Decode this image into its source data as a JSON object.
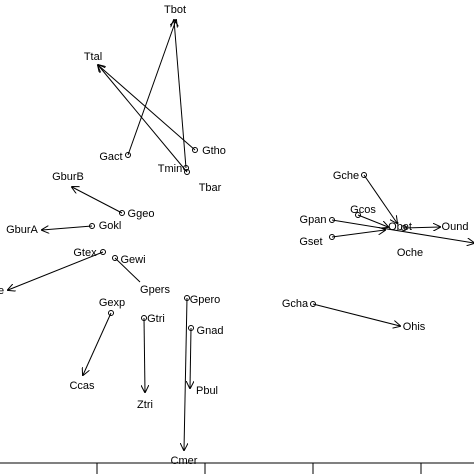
{
  "nodes": [
    {
      "label": "Tbot"
    },
    {
      "label": "Ttal"
    },
    {
      "label": "Gtho"
    },
    {
      "label": "Gact"
    },
    {
      "label": "Tmin"
    },
    {
      "label": "Tbar"
    },
    {
      "label": "GburB"
    },
    {
      "label": "Ggeo"
    },
    {
      "label": "Gokl"
    },
    {
      "label": "GburA"
    },
    {
      "label": "Gtex"
    },
    {
      "label": "Gewi"
    },
    {
      "label": "e"
    },
    {
      "label": "Gpers"
    },
    {
      "label": "Gexp"
    },
    {
      "label": "Gpero"
    },
    {
      "label": "Gtri"
    },
    {
      "label": "Gnad"
    },
    {
      "label": "Ccas"
    },
    {
      "label": "Ztri"
    },
    {
      "label": "Pbul"
    },
    {
      "label": "Cmer"
    },
    {
      "label": "Gche"
    },
    {
      "label": "Gcos"
    },
    {
      "label": "Gpan"
    },
    {
      "label": "Gset"
    },
    {
      "label": "Obet"
    },
    {
      "label": "Ound"
    },
    {
      "label": "Oche"
    },
    {
      "label": "Gcha"
    },
    {
      "label": "Ohis"
    }
  ]
}
